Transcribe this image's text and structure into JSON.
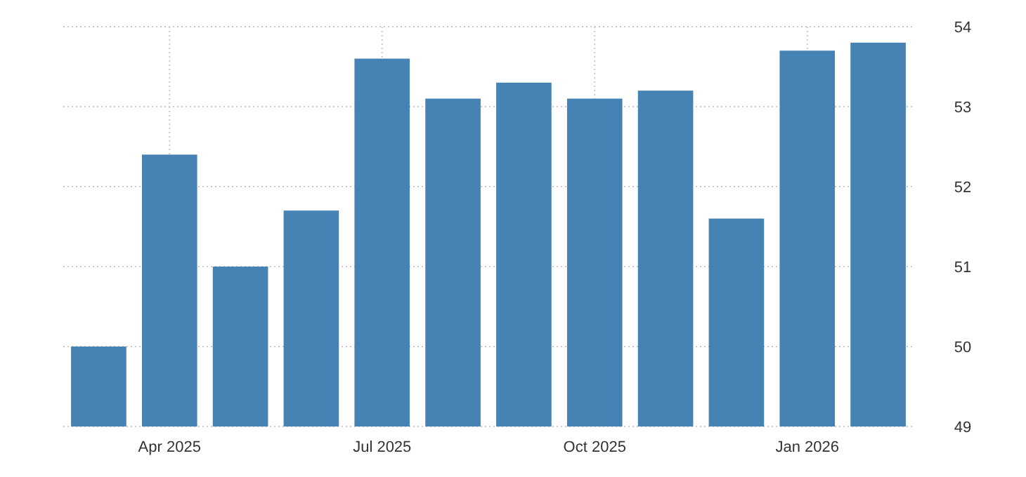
{
  "chart_data": {
    "type": "bar",
    "categories": [
      null,
      "Apr 2025",
      null,
      null,
      "Jul 2025",
      null,
      null,
      "Oct 2025",
      null,
      null,
      "Jan 2026",
      null
    ],
    "values": [
      50.0,
      52.4,
      51.0,
      51.7,
      53.6,
      53.1,
      53.3,
      53.1,
      53.2,
      51.6,
      53.7,
      53.8
    ],
    "color": "#4682b4",
    "ylim": [
      49,
      54
    ],
    "yticks": [
      49,
      50,
      51,
      52,
      53,
      54
    ],
    "grid": true
  }
}
